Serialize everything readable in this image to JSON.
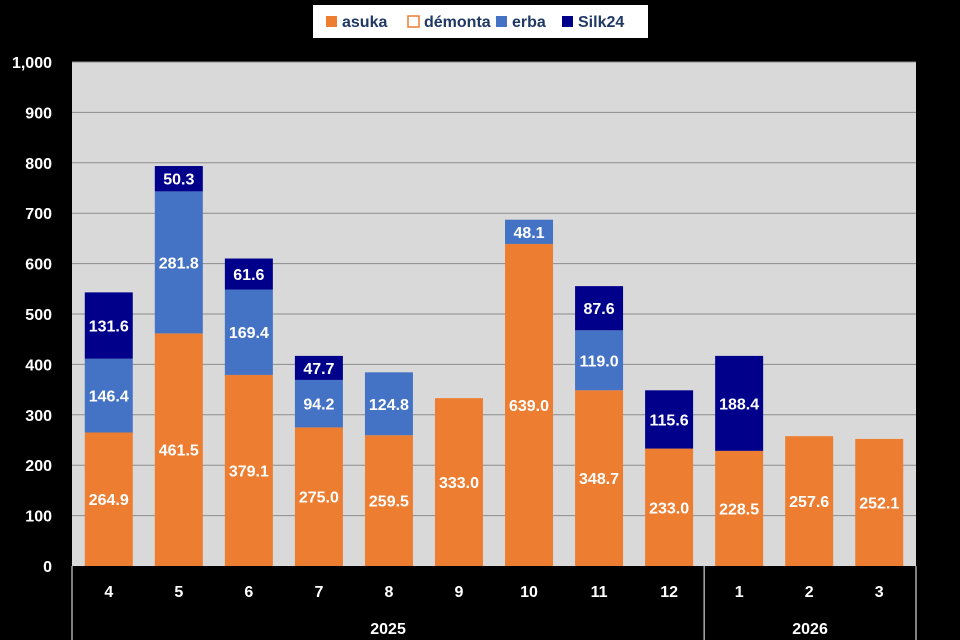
{
  "chart_data": {
    "type": "bar",
    "stacked": true,
    "legend_position": "top",
    "ylim": [
      0,
      1000
    ],
    "yticks": [
      0,
      100,
      200,
      300,
      400,
      500,
      600,
      700,
      800,
      900,
      1000
    ],
    "ytick_labels": [
      "0",
      "100",
      "200",
      "300",
      "400",
      "500",
      "600",
      "700",
      "800",
      "900",
      "1,000"
    ],
    "categories": [
      "4",
      "5",
      "6",
      "7",
      "8",
      "9",
      "10",
      "11",
      "12",
      "1",
      "2",
      "3"
    ],
    "year_groups": [
      {
        "label": "2025",
        "count": 9
      },
      {
        "label": "2026",
        "count": 3
      }
    ],
    "series": [
      {
        "name": "asuka",
        "color": "#ED7D31",
        "legend_style": "filled",
        "values": [
          264.9,
          461.5,
          379.1,
          275.0,
          259.5,
          333.0,
          639.0,
          348.7,
          233.0,
          228.5,
          257.6,
          252.1
        ]
      },
      {
        "name": "démonta",
        "color": "#ED7D31",
        "legend_style": "outline",
        "values": [
          0,
          0,
          0,
          0,
          0,
          0,
          0,
          0,
          0,
          0,
          0,
          0
        ]
      },
      {
        "name": "erba",
        "color": "#4472C4",
        "legend_style": "filled",
        "values": [
          146.4,
          281.8,
          169.4,
          94.2,
          124.8,
          0,
          48.1,
          119.0,
          0,
          0,
          0,
          0
        ]
      },
      {
        "name": "Silk24",
        "color": "#00008B",
        "legend_style": "filled",
        "values": [
          131.6,
          50.3,
          61.6,
          47.7,
          0,
          0,
          0,
          87.6,
          115.6,
          188.4,
          0,
          0
        ]
      }
    ],
    "grid": true,
    "plot_background": "#D9D9D9",
    "label_color": "#FFFFFF"
  }
}
